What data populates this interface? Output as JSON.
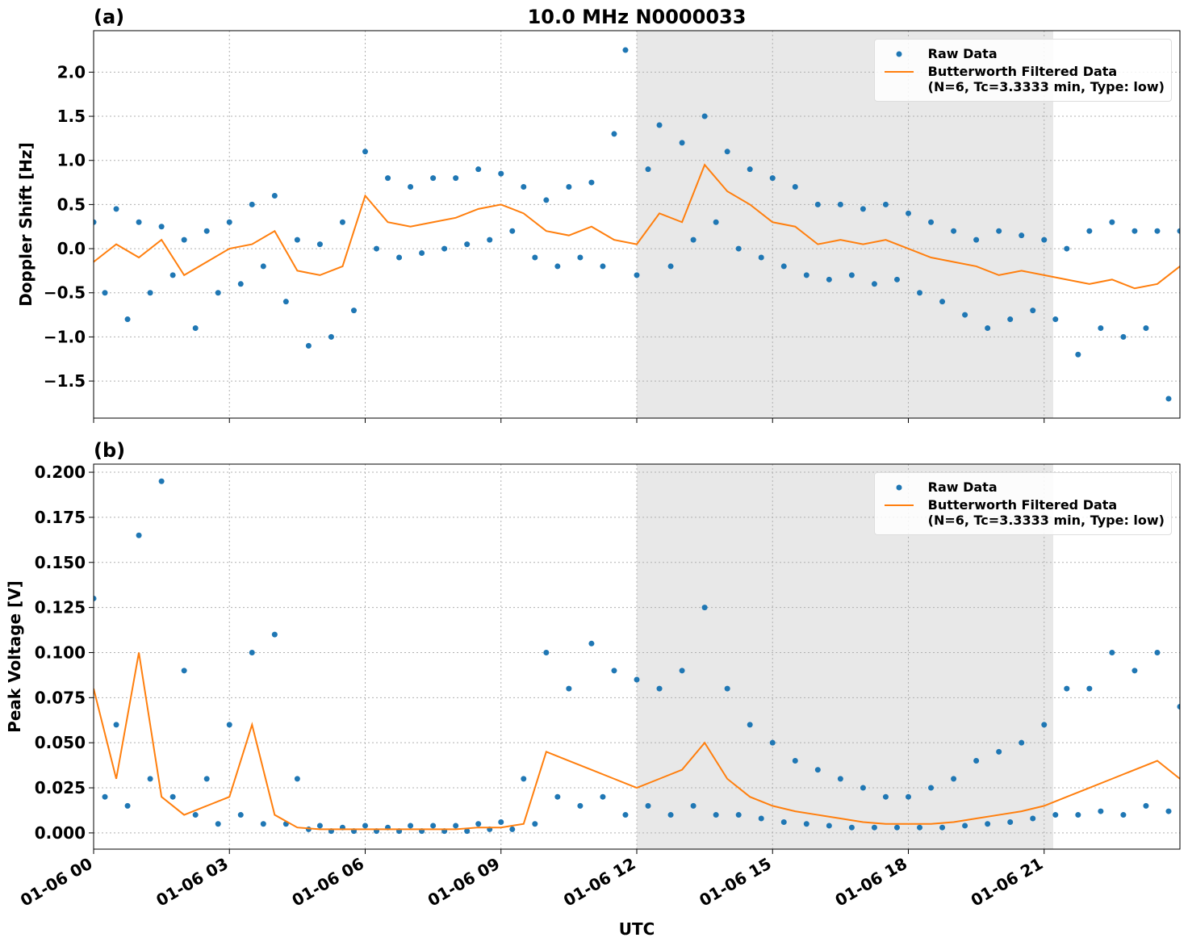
{
  "chart_data": [
    {
      "type": "line",
      "title": "10.0 MHz N0000033",
      "panel_label": "(a)",
      "y_label": "Doppler Shift [Hz]",
      "xlim": [
        0,
        24
      ],
      "xticks": [
        0,
        3,
        6,
        9,
        12,
        15,
        18,
        21
      ],
      "ylim": [
        -1.92,
        2.47
      ],
      "yticks": [
        {
          "value": -1.5,
          "label": "−1.5"
        },
        {
          "value": -1.0,
          "label": "−1.0"
        },
        {
          "value": -0.5,
          "label": "−0.5"
        },
        {
          "value": 0,
          "label": "0.0"
        },
        0.5,
        {
          "value": 1.0,
          "label": "1.0"
        },
        1.5,
        {
          "value": 2.0,
          "label": "2.0"
        }
      ],
      "grid": true,
      "shade": [
        12,
        21.2
      ],
      "shade_color": "#e8e8e8",
      "legend": "upper right",
      "series": [
        {
          "name": "Raw Data",
          "type": "scatter",
          "color": "#1f77b4",
          "x": [
            0,
            0.25,
            0.5,
            0.75,
            1,
            1.25,
            1.5,
            1.75,
            2,
            2.25,
            2.5,
            2.75,
            3,
            3.25,
            3.5,
            3.75,
            4,
            4.25,
            4.5,
            4.75,
            5,
            5.25,
            5.5,
            5.75,
            6,
            6.25,
            6.5,
            6.75,
            7,
            7.25,
            7.5,
            7.75,
            8,
            8.25,
            8.5,
            8.75,
            9,
            9.25,
            9.5,
            9.75,
            10,
            10.25,
            10.5,
            10.75,
            11,
            11.25,
            11.5,
            11.75,
            12,
            12.25,
            12.5,
            12.75,
            13,
            13.25,
            13.5,
            13.75,
            14,
            14.25,
            14.5,
            14.75,
            15,
            15.25,
            15.5,
            15.75,
            16,
            16.25,
            16.5,
            16.75,
            17,
            17.25,
            17.5,
            17.75,
            18,
            18.25,
            18.5,
            18.75,
            19,
            19.25,
            19.5,
            19.75,
            20,
            20.25,
            20.5,
            20.75,
            21,
            21.25,
            21.5,
            21.75,
            22,
            22.25,
            22.5,
            22.75,
            23,
            23.25,
            23.5,
            23.75,
            24
          ],
          "values": [
            0.3,
            -0.5,
            0.45,
            -0.8,
            0.3,
            -0.5,
            0.25,
            -0.3,
            0.1,
            -0.9,
            0.2,
            -0.5,
            0.3,
            -0.4,
            0.5,
            -0.2,
            0.6,
            -0.6,
            0.1,
            -1.1,
            0.05,
            -1.0,
            0.3,
            -0.7,
            1.1,
            0.0,
            0.8,
            -0.1,
            0.7,
            -0.05,
            0.8,
            0.0,
            0.8,
            0.05,
            0.9,
            0.1,
            0.85,
            0.2,
            0.7,
            -0.1,
            0.55,
            -0.2,
            0.7,
            -0.1,
            0.75,
            -0.2,
            1.3,
            2.25,
            -0.3,
            0.9,
            1.4,
            -0.2,
            1.2,
            0.1,
            1.5,
            0.3,
            1.1,
            0.0,
            0.9,
            -0.1,
            0.8,
            -0.2,
            0.7,
            -0.3,
            0.5,
            -0.35,
            0.5,
            -0.3,
            0.45,
            -0.4,
            0.5,
            -0.35,
            0.4,
            -0.5,
            0.3,
            -0.6,
            0.2,
            -0.75,
            0.1,
            -0.9,
            0.2,
            -0.8,
            0.15,
            -0.7,
            0.1,
            -0.8,
            0.0,
            -1.2,
            0.2,
            -0.9,
            0.3,
            -1.0,
            0.2,
            -0.9,
            0.2,
            -1.7,
            0.2
          ]
        },
        {
          "name": "Butterworth Filtered Data\n(N=6, Tc=3.3333 min, Type: low)",
          "type": "line",
          "color": "#ff7f0e",
          "x": [
            0,
            0.5,
            1,
            1.5,
            2,
            2.5,
            3,
            3.5,
            4,
            4.5,
            5,
            5.5,
            6,
            6.5,
            7,
            7.5,
            8,
            8.5,
            9,
            9.5,
            10,
            10.5,
            11,
            11.5,
            12,
            12.5,
            13,
            13.5,
            14,
            14.5,
            15,
            15.5,
            16,
            16.5,
            17,
            17.5,
            18,
            18.5,
            19,
            19.5,
            20,
            20.5,
            21,
            21.5,
            22,
            22.5,
            23,
            23.5,
            24
          ],
          "values": [
            -0.15,
            0.05,
            -0.1,
            0.1,
            -0.3,
            -0.15,
            0.0,
            0.05,
            0.2,
            -0.25,
            -0.3,
            -0.2,
            0.6,
            0.3,
            0.25,
            0.3,
            0.35,
            0.45,
            0.5,
            0.4,
            0.2,
            0.15,
            0.25,
            0.1,
            0.05,
            0.4,
            0.3,
            0.95,
            0.65,
            0.5,
            0.3,
            0.25,
            0.05,
            0.1,
            0.05,
            0.1,
            0.0,
            -0.1,
            -0.15,
            -0.2,
            -0.3,
            -0.25,
            -0.3,
            -0.35,
            -0.4,
            -0.35,
            -0.45,
            -0.4,
            -0.2
          ]
        }
      ]
    },
    {
      "type": "line",
      "panel_label": "(b)",
      "y_label": "Peak Voltage [V]",
      "x_label": "UTC",
      "xlim": [
        0,
        24
      ],
      "xticks": [
        {
          "value": 0,
          "label": "01-06 00"
        },
        {
          "value": 3,
          "label": "01-06 03"
        },
        {
          "value": 6,
          "label": "01-06 06"
        },
        {
          "value": 9,
          "label": "01-06 09"
        },
        {
          "value": 12,
          "label": "01-06 12"
        },
        {
          "value": 15,
          "label": "01-06 15"
        },
        {
          "value": 18,
          "label": "01-06 18"
        },
        {
          "value": 21,
          "label": "01-06 21"
        }
      ],
      "ylim": [
        -0.009,
        0.2045
      ],
      "yticks": [
        {
          "value": 0,
          "label": "0.000"
        },
        0.025,
        {
          "value": 0.05,
          "label": "0.050"
        },
        0.075,
        {
          "value": 0.1,
          "label": "0.100"
        },
        0.125,
        {
          "value": 0.15,
          "label": "0.150"
        },
        0.175,
        {
          "value": 0.2,
          "label": "0.200"
        }
      ],
      "grid": true,
      "shade": [
        12,
        21.2
      ],
      "shade_color": "#e8e8e8",
      "legend": "upper right",
      "series": [
        {
          "name": "Raw Data",
          "type": "scatter",
          "color": "#1f77b4",
          "x": [
            0,
            0.25,
            0.5,
            0.75,
            1,
            1.25,
            1.5,
            1.75,
            2,
            2.25,
            2.5,
            2.75,
            3,
            3.25,
            3.5,
            3.75,
            4,
            4.25,
            4.5,
            4.75,
            5,
            5.25,
            5.5,
            5.75,
            6,
            6.25,
            6.5,
            6.75,
            7,
            7.25,
            7.5,
            7.75,
            8,
            8.25,
            8.5,
            8.75,
            9,
            9.25,
            9.5,
            9.75,
            10,
            10.25,
            10.5,
            10.75,
            11,
            11.25,
            11.5,
            11.75,
            12,
            12.25,
            12.5,
            12.75,
            13,
            13.25,
            13.5,
            13.75,
            14,
            14.25,
            14.5,
            14.75,
            15,
            15.25,
            15.5,
            15.75,
            16,
            16.25,
            16.5,
            16.75,
            17,
            17.25,
            17.5,
            17.75,
            18,
            18.25,
            18.5,
            18.75,
            19,
            19.25,
            19.5,
            19.75,
            20,
            20.25,
            20.5,
            20.75,
            21,
            21.25,
            21.5,
            21.75,
            22,
            22.25,
            22.5,
            22.75,
            23,
            23.25,
            23.5,
            23.75,
            24
          ],
          "values": [
            0.13,
            0.02,
            0.06,
            0.015,
            0.165,
            0.03,
            0.195,
            0.02,
            0.09,
            0.01,
            0.03,
            0.005,
            0.06,
            0.01,
            0.1,
            0.005,
            0.11,
            0.005,
            0.03,
            0.002,
            0.004,
            0.001,
            0.003,
            0.001,
            0.004,
            0.001,
            0.003,
            0.001,
            0.004,
            0.001,
            0.004,
            0.001,
            0.004,
            0.001,
            0.005,
            0.002,
            0.006,
            0.002,
            0.03,
            0.005,
            0.1,
            0.02,
            0.08,
            0.015,
            0.105,
            0.02,
            0.09,
            0.01,
            0.085,
            0.015,
            0.08,
            0.01,
            0.09,
            0.015,
            0.125,
            0.01,
            0.08,
            0.01,
            0.06,
            0.008,
            0.05,
            0.006,
            0.04,
            0.005,
            0.035,
            0.004,
            0.03,
            0.003,
            0.025,
            0.003,
            0.02,
            0.003,
            0.02,
            0.003,
            0.025,
            0.003,
            0.03,
            0.004,
            0.04,
            0.005,
            0.045,
            0.006,
            0.05,
            0.008,
            0.06,
            0.01,
            0.08,
            0.01,
            0.08,
            0.012,
            0.1,
            0.01,
            0.09,
            0.015,
            0.1,
            0.012,
            0.07
          ]
        },
        {
          "name": "Butterworth Filtered Data\n(N=6, Tc=3.3333 min, Type: low)",
          "type": "line",
          "color": "#ff7f0e",
          "x": [
            0,
            0.5,
            1,
            1.5,
            2,
            2.5,
            3,
            3.5,
            4,
            4.5,
            5,
            5.5,
            6,
            6.5,
            7,
            7.5,
            8,
            8.5,
            9,
            9.5,
            10,
            10.5,
            11,
            11.5,
            12,
            12.5,
            13,
            13.5,
            14,
            14.5,
            15,
            15.5,
            16,
            16.5,
            17,
            17.5,
            18,
            18.5,
            19,
            19.5,
            20,
            20.5,
            21,
            21.5,
            22,
            22.5,
            23,
            23.5,
            24
          ],
          "values": [
            0.08,
            0.03,
            0.1,
            0.02,
            0.01,
            0.015,
            0.02,
            0.06,
            0.01,
            0.003,
            0.002,
            0.002,
            0.002,
            0.002,
            0.002,
            0.002,
            0.002,
            0.003,
            0.003,
            0.005,
            0.045,
            0.04,
            0.035,
            0.03,
            0.025,
            0.03,
            0.035,
            0.05,
            0.03,
            0.02,
            0.015,
            0.012,
            0.01,
            0.008,
            0.006,
            0.005,
            0.005,
            0.005,
            0.006,
            0.008,
            0.01,
            0.012,
            0.015,
            0.02,
            0.025,
            0.03,
            0.035,
            0.04,
            0.03
          ]
        }
      ]
    }
  ]
}
